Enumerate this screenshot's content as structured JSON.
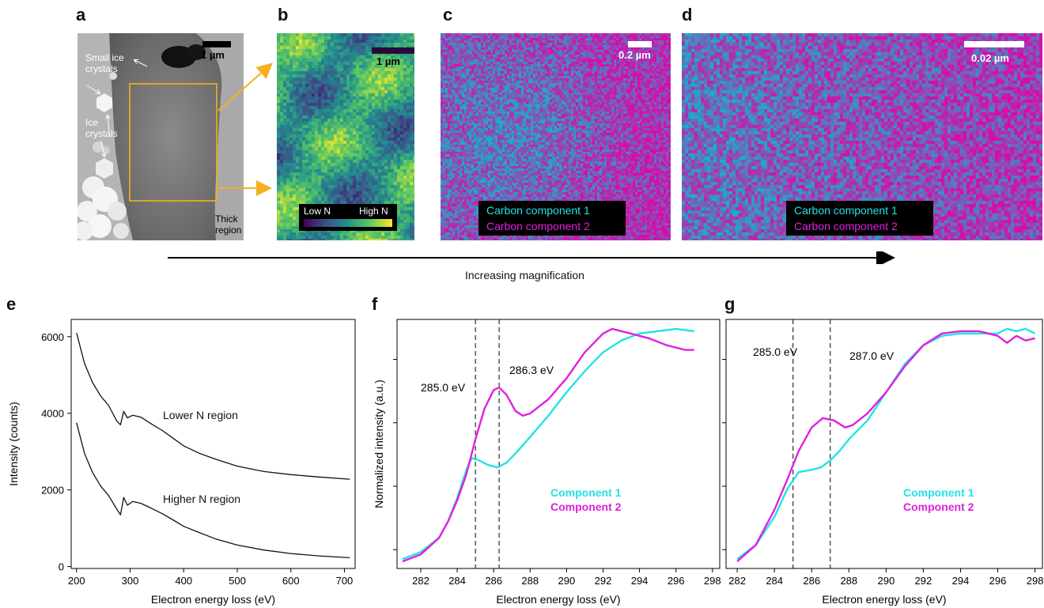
{
  "panels": {
    "a": {
      "letter": "a",
      "scale_label": "1 µm",
      "label_small_ice": [
        "Small ice",
        "crystals"
      ],
      "label_ice": [
        "Ice",
        "crystals"
      ],
      "label_thick": [
        "Thick",
        "region"
      ]
    },
    "b": {
      "letter": "b",
      "scale_label": "1 µm",
      "colorbar_low": "Low N",
      "colorbar_high": "High N"
    },
    "c": {
      "letter": "c",
      "scale_label": "0.2 µm",
      "legend": [
        "Carbon component 1",
        "Carbon component 2"
      ]
    },
    "d": {
      "letter": "d",
      "scale_label": "0.02 µm",
      "legend": [
        "Carbon component 1",
        "Carbon component 2"
      ]
    },
    "magnification_label": "Increasing magnification",
    "e": {
      "letter": "e"
    },
    "f": {
      "letter": "f"
    },
    "g": {
      "letter": "g"
    }
  },
  "colors": {
    "cyan": "#22e3e3",
    "magenta": "#e020e0",
    "orange": "#f5b021",
    "black": "#111111"
  },
  "chart_data": [
    {
      "id": "e",
      "type": "line",
      "xlabel": "Electron energy loss (eV)",
      "ylabel": "Intensity (counts)",
      "xlim": [
        190,
        720
      ],
      "ylim": [
        -50,
        6450
      ],
      "xticks": [
        200,
        300,
        400,
        500,
        600,
        700
      ],
      "yticks": [
        0,
        2000,
        4000,
        6000
      ],
      "series": [
        {
          "name": "Lower N region",
          "x": [
            200,
            215,
            230,
            245,
            260,
            275,
            282,
            288,
            295,
            305,
            320,
            340,
            360,
            380,
            400,
            430,
            460,
            500,
            550,
            600,
            650,
            710
          ],
          "y": [
            6100,
            5300,
            4800,
            4450,
            4200,
            3800,
            3700,
            4050,
            3880,
            3950,
            3900,
            3720,
            3550,
            3350,
            3150,
            2950,
            2800,
            2620,
            2480,
            2400,
            2340,
            2280
          ]
        },
        {
          "name": "Higher N region",
          "x": [
            200,
            215,
            230,
            245,
            260,
            275,
            282,
            288,
            295,
            305,
            320,
            340,
            360,
            380,
            400,
            430,
            460,
            500,
            550,
            600,
            650,
            710
          ],
          "y": [
            3750,
            2950,
            2450,
            2100,
            1850,
            1500,
            1350,
            1800,
            1600,
            1700,
            1650,
            1520,
            1380,
            1220,
            1050,
            880,
            720,
            560,
            430,
            340,
            280,
            230
          ]
        }
      ]
    },
    {
      "id": "f",
      "type": "line",
      "xlabel": "Electron energy loss (eV)",
      "ylabel": "Normalized intensity (a.u.)",
      "xlim": [
        280.7,
        298.4
      ],
      "ylim": [
        0,
        1.06
      ],
      "xticks": [
        282,
        284,
        286,
        288,
        290,
        292,
        294,
        296,
        298
      ],
      "vlines": [
        285.0,
        286.3
      ],
      "annotations": [
        "285.0 eV",
        "286.3 eV"
      ],
      "series": [
        {
          "name": "Component 1",
          "x": [
            281,
            282,
            283,
            283.5,
            284,
            284.5,
            284.8,
            285.2,
            285.7,
            286.2,
            286.7,
            287.2,
            288,
            289,
            290,
            291,
            292,
            293,
            294,
            295,
            296,
            297
          ],
          "y": [
            0.04,
            0.07,
            0.13,
            0.2,
            0.3,
            0.42,
            0.47,
            0.46,
            0.44,
            0.43,
            0.45,
            0.49,
            0.56,
            0.65,
            0.75,
            0.84,
            0.92,
            0.97,
            1.0,
            1.01,
            1.02,
            1.01
          ]
        },
        {
          "name": "Component 2",
          "x": [
            281,
            282,
            283,
            283.5,
            284,
            284.5,
            285,
            285.5,
            286,
            286.3,
            286.7,
            287.2,
            287.6,
            288,
            289,
            290,
            291,
            292,
            292.5,
            293.5,
            294.5,
            295.5,
            296.5,
            297
          ],
          "y": [
            0.03,
            0.06,
            0.13,
            0.2,
            0.29,
            0.4,
            0.55,
            0.68,
            0.76,
            0.77,
            0.74,
            0.67,
            0.65,
            0.66,
            0.72,
            0.81,
            0.92,
            1.0,
            1.02,
            1.0,
            0.98,
            0.95,
            0.93,
            0.93
          ]
        }
      ]
    },
    {
      "id": "g",
      "type": "line",
      "xlabel": "Electron energy loss (eV)",
      "ylabel": "",
      "xlim": [
        281.4,
        298.4
      ],
      "ylim": [
        0,
        1.06
      ],
      "xticks": [
        282,
        284,
        286,
        288,
        290,
        292,
        294,
        296,
        298
      ],
      "vlines": [
        285.0,
        287.0
      ],
      "annotations": [
        "285.0 eV",
        "287.0 eV"
      ],
      "series": [
        {
          "name": "Component 1",
          "x": [
            282,
            283,
            284,
            284.7,
            285.3,
            286,
            286.5,
            287,
            287.5,
            288,
            289,
            290,
            291,
            292,
            293,
            294,
            295,
            296,
            296.5,
            297,
            297.5,
            298
          ],
          "y": [
            0.04,
            0.1,
            0.22,
            0.34,
            0.41,
            0.42,
            0.43,
            0.46,
            0.5,
            0.55,
            0.63,
            0.75,
            0.87,
            0.95,
            0.99,
            1.0,
            1.0,
            1.0,
            1.02,
            1.01,
            1.02,
            1.0
          ]
        },
        {
          "name": "Component 2",
          "x": [
            282,
            283,
            284,
            284.7,
            285.3,
            286,
            286.6,
            287.2,
            287.8,
            288.2,
            289,
            290,
            291,
            292,
            293,
            294,
            295,
            296,
            296.5,
            297,
            297.5,
            298
          ],
          "y": [
            0.03,
            0.1,
            0.25,
            0.38,
            0.5,
            0.6,
            0.64,
            0.63,
            0.6,
            0.61,
            0.66,
            0.75,
            0.86,
            0.95,
            1.0,
            1.01,
            1.01,
            0.99,
            0.96,
            0.99,
            0.97,
            0.98
          ]
        }
      ]
    }
  ]
}
